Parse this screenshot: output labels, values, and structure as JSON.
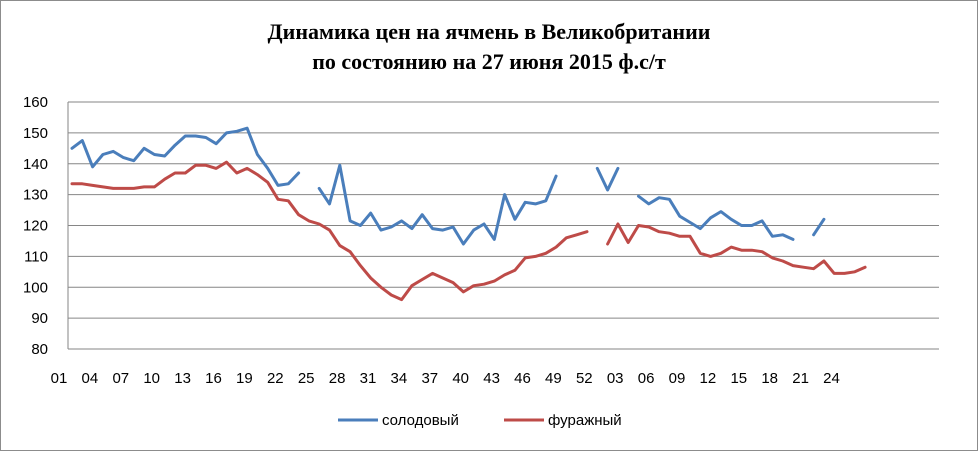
{
  "chart_data": {
    "type": "line",
    "title": "Динамика цен на ячмень в Великобритании",
    "subtitle": "по состоянию на 27 июня 2015 ф.с/т",
    "xlabel": "",
    "ylabel": "",
    "ylim": [
      80,
      160
    ],
    "y_ticks": [
      80,
      90,
      100,
      110,
      120,
      130,
      140,
      150,
      160
    ],
    "x_tick_labels": [
      "01",
      "04",
      "07",
      "10",
      "13",
      "16",
      "19",
      "22",
      "25",
      "28",
      "31",
      "34",
      "37",
      "40",
      "43",
      "46",
      "49",
      "52",
      "03",
      "06",
      "09",
      "12",
      "15",
      "18",
      "21",
      "24"
    ],
    "grid": true,
    "legend_position": "bottom",
    "series": [
      {
        "name": "солодовый",
        "color": "#4a7ebb",
        "values": [
          145,
          147.5,
          139,
          143,
          144,
          142,
          141,
          145,
          143,
          142.5,
          146,
          149,
          149,
          148.5,
          146.5,
          150,
          150.5,
          151.5,
          143,
          138.5,
          133,
          133.5,
          137,
          null,
          132,
          127,
          139.5,
          121.5,
          120,
          124,
          118.5,
          119.5,
          121.5,
          119,
          123.5,
          119,
          118.5,
          119.5,
          114,
          118.5,
          120.5,
          115.5,
          130,
          122,
          127.5,
          127,
          128,
          136,
          null,
          null,
          null,
          138.5,
          131.5,
          138.5,
          null,
          129.5,
          127,
          129,
          128.5,
          123,
          121,
          119,
          122.5,
          124.5,
          122,
          120,
          120,
          121.5,
          116.5,
          117,
          115.5,
          null,
          117,
          122
        ]
      },
      {
        "name": "фуражный",
        "color": "#be4b48",
        "values": [
          133.5,
          133.5,
          133,
          132.5,
          132,
          132,
          132,
          132.5,
          132.5,
          135,
          137,
          137,
          139.5,
          139.5,
          138.5,
          140.5,
          137,
          138.5,
          136.5,
          134,
          128.5,
          128,
          123.5,
          121.5,
          120.5,
          118.5,
          113.5,
          111.5,
          107,
          103,
          100,
          97.5,
          96,
          100.5,
          102.5,
          104.5,
          103,
          101.5,
          98.5,
          100.5,
          101,
          102,
          104,
          105.5,
          109.5,
          110,
          111,
          113,
          116,
          117,
          118,
          null,
          114,
          120.5,
          114.5,
          120,
          119.5,
          118,
          117.5,
          116.5,
          116.5,
          111,
          110,
          111,
          113,
          112,
          112,
          111.5,
          109.5,
          108.5,
          107,
          106.5,
          106,
          108.5,
          104.5,
          104.5,
          105,
          106.5
        ]
      }
    ]
  }
}
